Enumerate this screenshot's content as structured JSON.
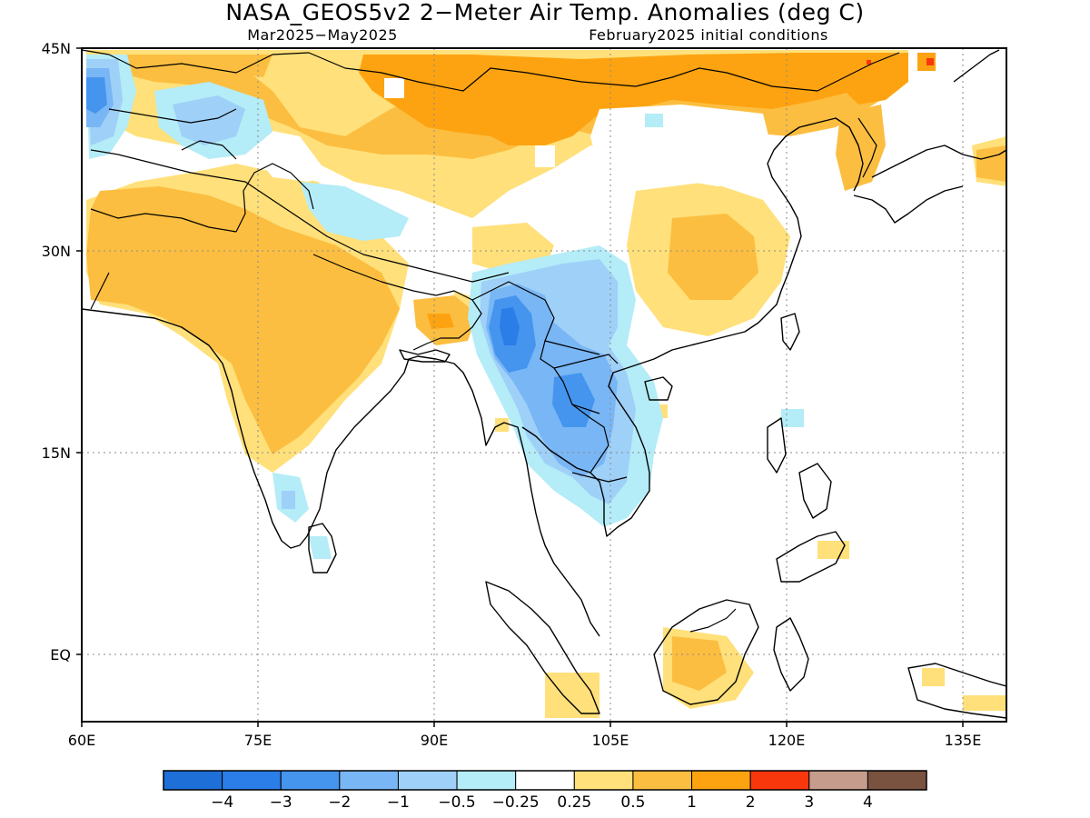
{
  "title": "NASA_GEOS5v2 2−Meter Air Temp. Anomalies (deg C)",
  "subtitle_left": "Mar2025−May2025",
  "subtitle_right": "February2025 initial conditions",
  "axes": {
    "lon_labels": [
      "60E",
      "75E",
      "90E",
      "105E",
      "120E",
      "135E"
    ],
    "lat_labels": [
      "45N",
      "30N",
      "15N",
      "EQ"
    ]
  },
  "colorbar": {
    "colors": [
      "#1f6fd8",
      "#2b7de8",
      "#4595ee",
      "#79b6f5",
      "#9fd0f8",
      "#b4ecf7",
      "#ffffff",
      "#ffe07a",
      "#fcbe40",
      "#fda311",
      "#f8370d",
      "#c69c8c",
      "#7a5240"
    ],
    "labels": [
      "−4",
      "−3",
      "−2",
      "−1",
      "−0.5",
      "−0.25",
      "0.25",
      "0.5",
      "1",
      "2",
      "3",
      "4"
    ]
  },
  "regions": [
    {
      "level": "0.5",
      "color": "#fcbe40",
      "note": "Mongolia / N China warm belt"
    },
    {
      "level": "1",
      "color": "#fda311",
      "note": "central Mongolia / NE China"
    },
    {
      "level": "0.5",
      "color": "#fcbe40",
      "note": "India / Pakistan"
    },
    {
      "level": "0.5",
      "color": "#fcbe40",
      "note": "central China"
    },
    {
      "level": "-1",
      "color": "#79b6f5",
      "note": "Myanmar / Indochina cold anomaly"
    },
    {
      "level": "-2",
      "color": "#4595ee",
      "note": "northern Myanmar"
    }
  ]
}
